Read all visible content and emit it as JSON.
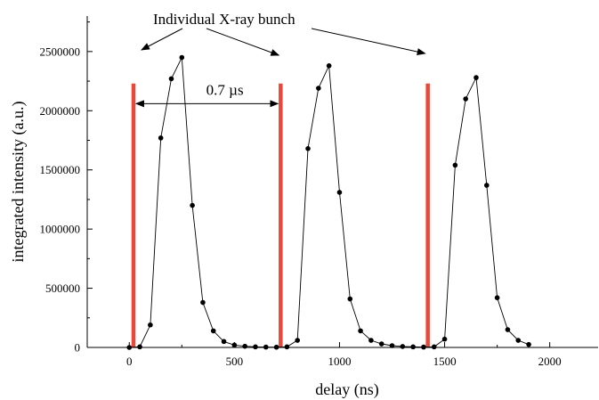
{
  "chart_data": {
    "type": "line",
    "title": "",
    "xlabel": "delay (ns)",
    "ylabel": "integrated intensity (a.u.)",
    "xlim": [
      -200,
      2230
    ],
    "ylim": [
      0,
      2800000
    ],
    "x_ticks": [
      0,
      500,
      1000,
      1500,
      2000
    ],
    "x_tick_labels": [
      "0",
      "500",
      "1000",
      "1500",
      "2000"
    ],
    "y_ticks": [
      0,
      500000,
      1000000,
      1500000,
      2000000,
      2500000
    ],
    "y_tick_labels": [
      "0",
      "500000",
      "1000000",
      "1500000",
      "2000000",
      "2500000"
    ],
    "grid": false,
    "legend": "none",
    "series": [
      {
        "x": [
          0,
          50,
          100,
          150,
          200,
          250,
          300,
          350,
          400,
          450,
          500,
          550,
          600,
          650,
          700,
          750,
          800,
          850,
          900,
          950,
          1000,
          1050,
          1100,
          1150,
          1200,
          1250,
          1300,
          1350,
          1400,
          1450,
          1500,
          1550,
          1600,
          1650,
          1700,
          1750,
          1800,
          1850,
          1900
        ],
        "y": [
          0,
          5000,
          190000,
          1770000,
          2270000,
          2450000,
          1200000,
          380000,
          140000,
          50000,
          20000,
          10000,
          5000,
          3000,
          2000,
          5000,
          60000,
          1680000,
          2190000,
          2380000,
          1310000,
          410000,
          140000,
          60000,
          30000,
          15000,
          8000,
          5000,
          3000,
          5000,
          70000,
          1540000,
          2100000,
          2280000,
          1370000,
          420000,
          150000,
          60000,
          25000
        ]
      }
    ],
    "bunch_markers": {
      "x": [
        20,
        720,
        1420
      ],
      "height": 2230000,
      "color": "#e8493a"
    },
    "annotations": {
      "bunch_label": "Individual X-ray bunch",
      "spacing_label": "0.7 µs",
      "spacing_arrow": {
        "x_start": 20,
        "x_end": 720,
        "y": 2060000
      }
    }
  }
}
